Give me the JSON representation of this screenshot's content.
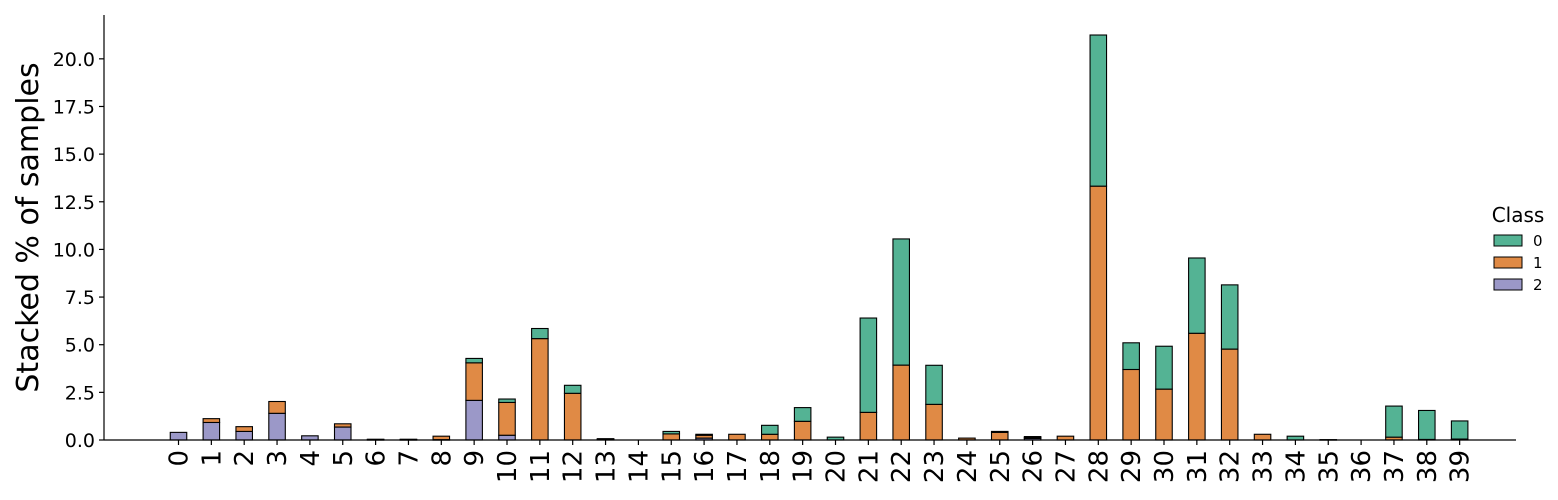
{
  "chart_data": {
    "type": "bar",
    "stacked": true,
    "ylabel": "Stacked % of samples",
    "xlabel": "",
    "ylim": [
      0,
      22.3
    ],
    "yticks": [
      "0.0",
      "2.5",
      "5.0",
      "7.5",
      "10.0",
      "12.5",
      "15.0",
      "17.5",
      "20.0"
    ],
    "categories": [
      "0",
      "1",
      "2",
      "3",
      "4",
      "5",
      "6",
      "7",
      "8",
      "9",
      "10",
      "11",
      "12",
      "13",
      "14",
      "15",
      "16",
      "17",
      "18",
      "19",
      "20",
      "21",
      "22",
      "23",
      "24",
      "25",
      "26",
      "27",
      "28",
      "29",
      "30",
      "31",
      "32",
      "33",
      "34",
      "35",
      "36",
      "37",
      "38",
      "39"
    ],
    "legend": {
      "title": "Class",
      "position": "right"
    },
    "series": [
      {
        "name": "2",
        "color": "#9b98c8",
        "values": [
          0.4,
          0.92,
          0.45,
          1.4,
          0.22,
          0.68,
          0.02,
          0.02,
          0.02,
          2.08,
          0.25,
          0,
          0,
          0.03,
          0,
          0,
          0.1,
          0,
          0,
          0,
          0,
          0,
          0,
          0,
          0,
          0,
          0.08,
          0,
          0,
          0,
          0,
          0,
          0,
          0,
          0,
          0,
          0,
          0,
          0,
          0
        ]
      },
      {
        "name": "1",
        "color": "#e08a45",
        "values": [
          0,
          0.2,
          0.25,
          0.62,
          0,
          0.17,
          0.02,
          0.02,
          0.18,
          1.97,
          1.72,
          5.32,
          2.45,
          0.02,
          0,
          0.32,
          0.15,
          0.3,
          0.3,
          0.98,
          0,
          1.45,
          3.93,
          1.87,
          0.1,
          0.4,
          0.05,
          0.2,
          13.32,
          3.7,
          2.67,
          5.6,
          4.77,
          0.3,
          0,
          0.02,
          0,
          0.15,
          0.03,
          0.05
        ]
      },
      {
        "name": "0",
        "color": "#54b394",
        "values": [
          0,
          0,
          0,
          0,
          0,
          0,
          0,
          0,
          0,
          0.23,
          0.18,
          0.53,
          0.42,
          0.02,
          0,
          0.13,
          0.05,
          0,
          0.47,
          0.72,
          0.15,
          4.95,
          6.62,
          2.05,
          0,
          0.05,
          0.05,
          0,
          7.93,
          1.4,
          2.25,
          3.95,
          3.37,
          0,
          0.2,
          0,
          0,
          1.63,
          1.52,
          0.95
        ]
      }
    ]
  }
}
